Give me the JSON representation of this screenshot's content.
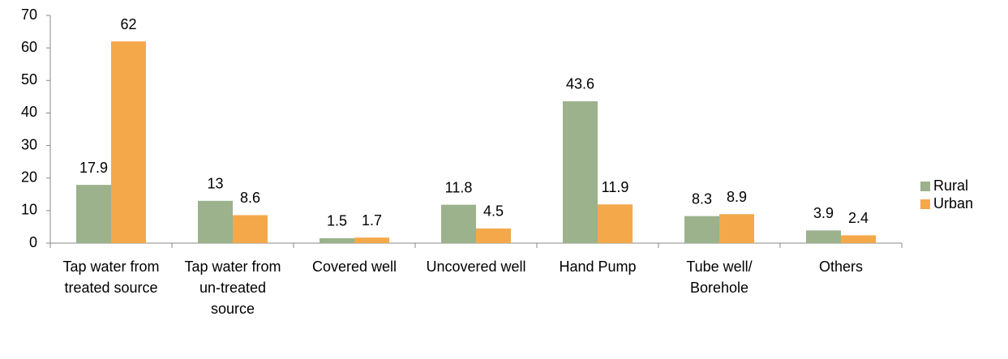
{
  "chart_data": {
    "type": "bar",
    "categories": [
      "Tap water from treated source",
      "Tap water from un-treated source",
      "Covered well",
      "Uncovered well",
      "Hand Pump",
      "Tube well/ Borehole",
      "Others"
    ],
    "series": [
      {
        "name": "Rural",
        "color": "#9bb28c",
        "values": [
          17.9,
          13,
          1.5,
          11.8,
          43.6,
          8.3,
          3.9
        ]
      },
      {
        "name": "Urban",
        "color": "#f4a84a",
        "values": [
          62,
          8.6,
          1.7,
          4.5,
          11.9,
          8.9,
          2.4
        ]
      }
    ],
    "ylim": [
      0,
      70
    ],
    "yticks": [
      0,
      10,
      20,
      30,
      40,
      50,
      60,
      70
    ],
    "grid": false,
    "legend": "right"
  }
}
